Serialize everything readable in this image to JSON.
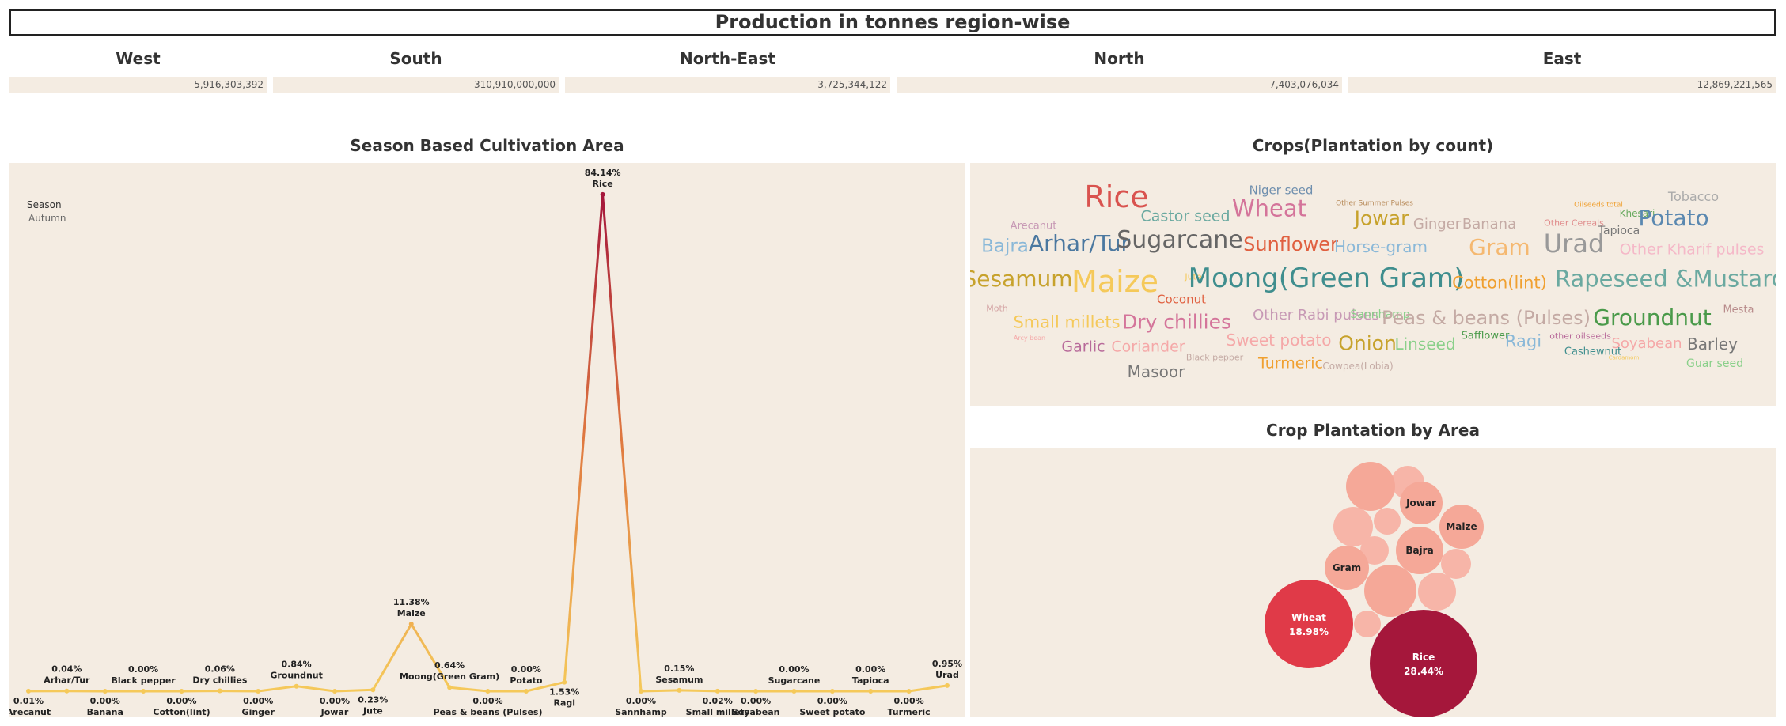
{
  "header": {
    "title": "Production in tonnes region-wise"
  },
  "regions": [
    {
      "name": "West",
      "value": "5,916,303,392"
    },
    {
      "name": "South",
      "value": "310,910,000,000"
    },
    {
      "name": "North-East",
      "value": "3,725,344,122"
    },
    {
      "name": "North",
      "value": "7,403,076,034"
    },
    {
      "name": "East",
      "value": "12,869,221,565"
    }
  ],
  "season_panel": {
    "title": "Season Based Cultivation Area",
    "legend_title": "Season",
    "legend_item": "Autumn"
  },
  "wordcloud_panel": {
    "title": "Crops(Plantation by count)",
    "words": [
      {
        "text": "Niger seed",
        "color": "#6f8fae"
      },
      {
        "text": "Tobacco",
        "color": "#aaaaaa"
      },
      {
        "text": "Rice",
        "color": "#d9534f"
      },
      {
        "text": "Castor seed",
        "color": "#6aa9a0"
      },
      {
        "text": "Wheat",
        "color": "#d4749a"
      },
      {
        "text": "Other Summer Pulses",
        "color": "#b88b5a"
      },
      {
        "text": "Oilseeds total",
        "color": "#f0a030"
      },
      {
        "text": "Khesari",
        "color": "#6aaa60"
      },
      {
        "text": "Arecanut",
        "color": "#c799b5"
      },
      {
        "text": "Jowar",
        "color": "#c7a22c"
      },
      {
        "text": "Ginger",
        "color": "#c4aaa4"
      },
      {
        "text": "Banana",
        "color": "#c4aaa4"
      },
      {
        "text": "Other Cereals",
        "color": "#e08b8b"
      },
      {
        "text": "Potato",
        "color": "#5a88b0"
      },
      {
        "text": "Tapioca",
        "color": "#777777"
      },
      {
        "text": "Bajra",
        "color": "#8ab8d8"
      },
      {
        "text": "Arhar/Tur",
        "color": "#4b78a0"
      },
      {
        "text": "Sugarcane",
        "color": "#666666"
      },
      {
        "text": "Sunflower",
        "color": "#e06040"
      },
      {
        "text": "Horse-gram",
        "color": "#8ab8d8"
      },
      {
        "text": "Gram",
        "color": "#f5b870"
      },
      {
        "text": "Urad",
        "color": "#999999"
      },
      {
        "text": "Other Kharif pulses",
        "color": "#f5b8c8"
      },
      {
        "text": "Sesamum",
        "color": "#c7a22c"
      },
      {
        "text": "Maize",
        "color": "#f5c95a"
      },
      {
        "text": "Jute",
        "color": "#f5c95a"
      },
      {
        "text": "Moong(Green Gram)",
        "color": "#3f8e8e"
      },
      {
        "text": "Cotton(lint)",
        "color": "#f0a030"
      },
      {
        "text": "Rapeseed &Mustard",
        "color": "#6aa9a0"
      },
      {
        "text": "Coconut",
        "color": "#e06040"
      },
      {
        "text": "Moth",
        "color": "#d4a4a4"
      },
      {
        "text": "Groundnut",
        "color": "#4a9a4a"
      },
      {
        "text": "Mesta",
        "color": "#b88b8b"
      },
      {
        "text": "Small millets",
        "color": "#f5c95a"
      },
      {
        "text": "Dry chillies",
        "color": "#d4749a"
      },
      {
        "text": "Other Rabi pulses",
        "color": "#c799b5"
      },
      {
        "text": "Sannhamp",
        "color": "#8ad08a"
      },
      {
        "text": "Peas & beans (Pulses)",
        "color": "#c4aaa4"
      },
      {
        "text": "Arcy bean",
        "color": "#f5a8a8"
      },
      {
        "text": "Garlic",
        "color": "#b86a9a"
      },
      {
        "text": "Coriander",
        "color": "#f5a8a8"
      },
      {
        "text": "Sweet potato",
        "color": "#f5a8a8"
      },
      {
        "text": "Onion",
        "color": "#c7a22c"
      },
      {
        "text": "Linseed",
        "color": "#8ad08a"
      },
      {
        "text": "Safflower",
        "color": "#4a9a4a"
      },
      {
        "text": "Ragi",
        "color": "#8ab8d8"
      },
      {
        "text": "other oilseeds",
        "color": "#b86a9a"
      },
      {
        "text": "Soyabean",
        "color": "#f5a8a8"
      },
      {
        "text": "Barley",
        "color": "#777777"
      },
      {
        "text": "Black pepper",
        "color": "#c4aaa4"
      },
      {
        "text": "Cashewnut",
        "color": "#3f8e8e"
      },
      {
        "text": "Guar seed",
        "color": "#8ad08a"
      },
      {
        "text": "Cardamom",
        "color": "#f5c95a"
      },
      {
        "text": "Masoor",
        "color": "#777777"
      },
      {
        "text": "Turmeric",
        "color": "#f0a030"
      },
      {
        "text": "Cowpea(Lobia)",
        "color": "#c4aaa4"
      }
    ]
  },
  "bubble_panel": {
    "title": "Crop Plantation by Area",
    "labels": [
      {
        "name": "Jowar",
        "value": ""
      },
      {
        "name": "Maize",
        "value": ""
      },
      {
        "name": "Bajra",
        "value": ""
      },
      {
        "name": "Gram",
        "value": ""
      },
      {
        "name": "Wheat",
        "value": "18.98%"
      },
      {
        "name": "Rice",
        "value": "28.44%"
      }
    ]
  },
  "chart_data": {
    "type": "line",
    "title": "Season Based Cultivation Area",
    "series": [
      {
        "name": "Autumn",
        "points": [
          {
            "crop": "Arecanut",
            "value": 0.01,
            "pct": "0.01%"
          },
          {
            "crop": "Arhar/Tur",
            "value": 0.04,
            "pct": "0.04%"
          },
          {
            "crop": "Banana",
            "value": 0.0,
            "pct": "0.00%"
          },
          {
            "crop": "Black pepper",
            "value": 0.0,
            "pct": "0.00%"
          },
          {
            "crop": "Cotton(lint)",
            "value": 0.0,
            "pct": "0.00%"
          },
          {
            "crop": "Dry chillies",
            "value": 0.06,
            "pct": "0.06%"
          },
          {
            "crop": "Ginger",
            "value": 0.0,
            "pct": "0.00%"
          },
          {
            "crop": "Groundnut",
            "value": 0.84,
            "pct": "0.84%"
          },
          {
            "crop": "Jowar",
            "value": 0.0,
            "pct": "0.00%"
          },
          {
            "crop": "Jute",
            "value": 0.23,
            "pct": "0.23%"
          },
          {
            "crop": "Maize",
            "value": 11.38,
            "pct": "11.38%"
          },
          {
            "crop": "Moong(Green Gram)",
            "value": 0.64,
            "pct": "0.64%"
          },
          {
            "crop": "Peas & beans (Pulses)",
            "value": 0.0,
            "pct": "0.00%"
          },
          {
            "crop": "Potato",
            "value": 0.0,
            "pct": "0.00%"
          },
          {
            "crop": "Ragi",
            "value": 1.53,
            "pct": "1.53%"
          },
          {
            "crop": "Rice",
            "value": 84.14,
            "pct": "84.14%"
          },
          {
            "crop": "Sannhamp",
            "value": 0.0,
            "pct": "0.00%"
          },
          {
            "crop": "Sesamum",
            "value": 0.15,
            "pct": "0.15%"
          },
          {
            "crop": "Small millets",
            "value": 0.02,
            "pct": "0.02%"
          },
          {
            "crop": "Soyabean",
            "value": 0.0,
            "pct": "0.00%"
          },
          {
            "crop": "Sugarcane",
            "value": 0.0,
            "pct": "0.00%"
          },
          {
            "crop": "Sweet potato",
            "value": 0.0,
            "pct": "0.00%"
          },
          {
            "crop": "Tapioca",
            "value": 0.0,
            "pct": "0.00%"
          },
          {
            "crop": "Turmeric",
            "value": 0.0,
            "pct": "0.00%"
          },
          {
            "crop": "Urad",
            "value": 0.95,
            "pct": "0.95%"
          }
        ]
      }
    ],
    "label_positions": [
      "below",
      "above",
      "below",
      "above",
      "below",
      "above",
      "below",
      "above",
      "below",
      "below",
      "above",
      "above",
      "below",
      "above",
      "below",
      "above",
      "below",
      "above",
      "below",
      "below",
      "above",
      "below",
      "above",
      "below",
      "above"
    ],
    "ylim": [
      0,
      100
    ],
    "grid": false,
    "legend": "top-left",
    "colors": {
      "low": "#f5c95a",
      "high": "#a5173b"
    }
  },
  "colors": {
    "panel_bg": "#f4ece2",
    "accent": "#a5173b"
  }
}
